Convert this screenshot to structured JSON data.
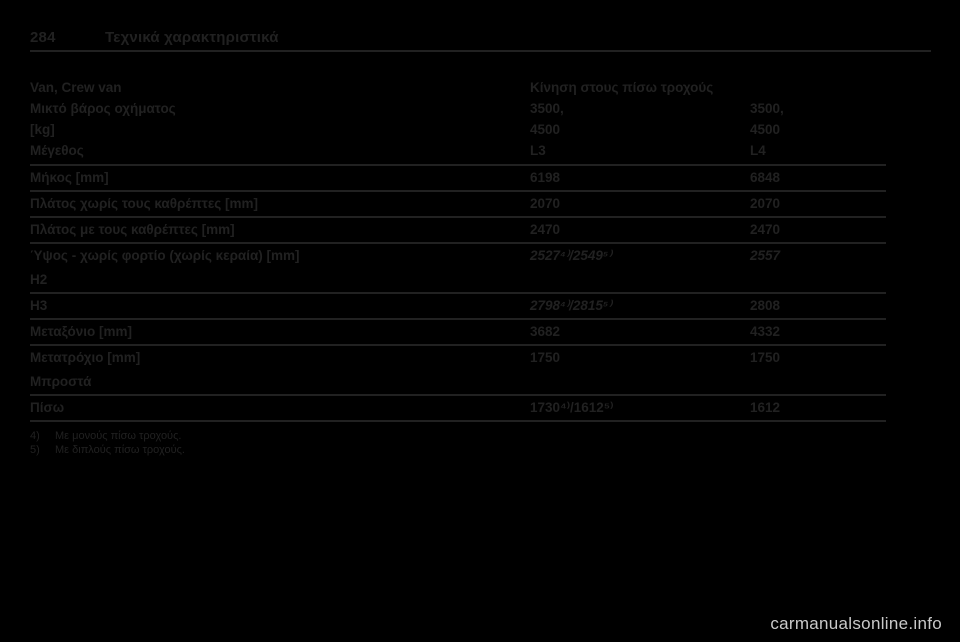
{
  "page": {
    "number": "284",
    "title": "Τεχνικά χαρακτηριστικά"
  },
  "table": {
    "header": {
      "row_label_lines": [
        "Van, Crew van",
        "Μικτό βάρος οχήματος",
        "[kg]",
        "Μέγεθος"
      ],
      "span_label": "Κίνηση στους πίσω τροχούς",
      "col1_lines": [
        "3500,",
        "4500",
        "L3"
      ],
      "col2_lines": [
        "3500,",
        "4500",
        "L4"
      ]
    },
    "rows": [
      {
        "label": "Μήκος [mm]",
        "col1": "6198",
        "col2": "6848"
      },
      {
        "label": "Πλάτος χωρίς τους καθρέπτες [mm]",
        "col1": "2070",
        "col2": "2070"
      },
      {
        "label": "Πλάτος με τους καθρέπτες [mm]",
        "col1": "2470",
        "col2": "2470"
      },
      {
        "label": "Ύψος - χωρίς φορτίο (χωρίς κεραία) [mm]",
        "label_line2": "H2",
        "col1": "2527⁴⁾/2549⁵⁾",
        "col2": "2557"
      },
      {
        "label": "H3",
        "col1": "2798⁴⁾/2815⁵⁾",
        "col2": "2808"
      },
      {
        "label": "Μεταξόνιο [mm]",
        "col1": "3682",
        "col2": "4332"
      },
      {
        "label": "Μετατρόχιο [mm]",
        "label_line2": "Μπροστά",
        "col1": "1750",
        "col2": "1750"
      },
      {
        "label": "Πίσω",
        "col1": "1730⁴⁾/1612⁵⁾",
        "col2": "1612"
      }
    ]
  },
  "footnotes": [
    {
      "marker": "4)",
      "text": "Με μονούς πίσω τροχούς."
    },
    {
      "marker": "5)",
      "text": "Με διπλούς πίσω τροχούς."
    }
  ],
  "watermark": "carmanualsonline.info",
  "colors": {
    "background": "#000000",
    "text": "#212121",
    "rule": "#212121",
    "watermark_text": "#c9c9c9"
  }
}
